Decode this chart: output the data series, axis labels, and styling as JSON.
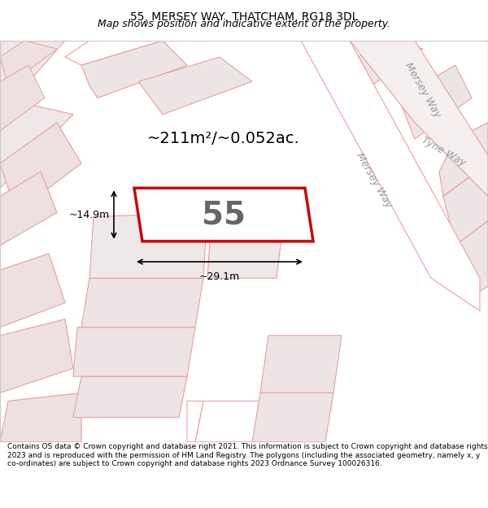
{
  "title": "55, MERSEY WAY, THATCHAM, RG18 3DL",
  "subtitle": "Map shows position and indicative extent of the property.",
  "footer": "Contains OS data © Crown copyright and database right 2021. This information is subject to Crown copyright and database rights 2023 and is reproduced with the permission of HM Land Registry. The polygons (including the associated geometry, namely x, y co-ordinates) are subject to Crown copyright and database rights 2023 Ordnance Survey 100026316.",
  "map_bg": "#f9f0f0",
  "map_border": "#cccccc",
  "road_fill": "#ffffff",
  "road_stroke": "#e8a0a0",
  "plot_fill": "#ffffff",
  "plot_stroke": "#e8a0a0",
  "highlight_fill": "#ffffff",
  "highlight_stroke": "#cc0000",
  "area_text": "~211m²/~0.052ac.",
  "plot_number": "55",
  "dim_width": "~29.1m",
  "dim_height": "~14.9m",
  "street_mersey_way": "Mersey Way",
  "street_tyne_way": "Tyne Way",
  "title_fontsize": 10,
  "subtitle_fontsize": 9,
  "footer_fontsize": 6.5
}
